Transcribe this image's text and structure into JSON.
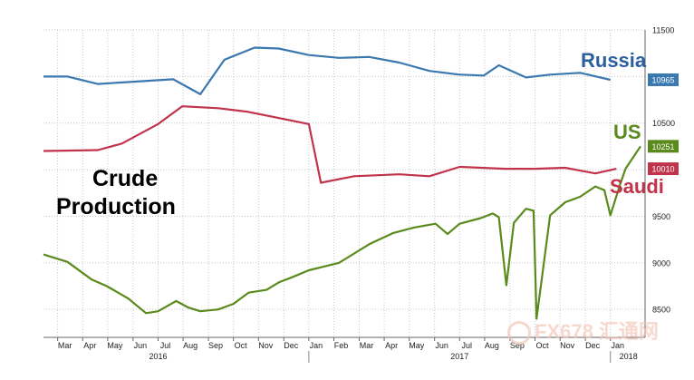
{
  "chart_data": {
    "type": "line",
    "title": "Crude\nProduction",
    "title_lines": [
      "Crude",
      "Production"
    ],
    "xlabel": "",
    "ylabel": "",
    "ylim": [
      8200,
      11500
    ],
    "y_ticks": [
      8500,
      9000,
      9500,
      10000,
      10500,
      11000,
      11500
    ],
    "grid": true,
    "y_axis_position": "right",
    "x_month_ticks": [
      {
        "label": "Mar",
        "t": 2016.167
      },
      {
        "label": "Apr",
        "t": 2016.25
      },
      {
        "label": "May",
        "t": 2016.333
      },
      {
        "label": "Jun",
        "t": 2016.417
      },
      {
        "label": "Jul",
        "t": 2016.5
      },
      {
        "label": "Aug",
        "t": 2016.583
      },
      {
        "label": "Sep",
        "t": 2016.667
      },
      {
        "label": "Oct",
        "t": 2016.75
      },
      {
        "label": "Nov",
        "t": 2016.833
      },
      {
        "label": "Dec",
        "t": 2016.917
      },
      {
        "label": "Jan",
        "t": 2017.0
      },
      {
        "label": "Feb",
        "t": 2017.083
      },
      {
        "label": "Mar",
        "t": 2017.167
      },
      {
        "label": "Apr",
        "t": 2017.25
      },
      {
        "label": "May",
        "t": 2017.333
      },
      {
        "label": "Jun",
        "t": 2017.417
      },
      {
        "label": "Jul",
        "t": 2017.5
      },
      {
        "label": "Aug",
        "t": 2017.583
      },
      {
        "label": "Sep",
        "t": 2017.667
      },
      {
        "label": "Oct",
        "t": 2017.75
      },
      {
        "label": "Nov",
        "t": 2017.833
      },
      {
        "label": "Dec",
        "t": 2017.917
      },
      {
        "label": "Jan",
        "t": 2018.0
      }
    ],
    "x_year_ticks": [
      {
        "label": "2016",
        "t": 2016.5
      },
      {
        "label": "2017",
        "t": 2017.5
      },
      {
        "label": "2018",
        "t": 2018.06
      }
    ],
    "series": [
      {
        "name": "Russia",
        "color": "#3a78b0",
        "last_value": 10965,
        "x": [
          2016.12,
          2016.2,
          2016.3,
          2016.4,
          2016.55,
          2016.64,
          2016.72,
          2016.82,
          2016.9,
          2017.0,
          2017.1,
          2017.2,
          2017.3,
          2017.4,
          2017.5,
          2017.58,
          2017.63,
          2017.72,
          2017.8,
          2017.9,
          2018.0
        ],
        "values": [
          11000,
          11000,
          10920,
          10940,
          10970,
          10810,
          11180,
          11310,
          11300,
          11230,
          11200,
          11210,
          11150,
          11060,
          11020,
          11010,
          11120,
          10990,
          11020,
          11040,
          10965
        ]
      },
      {
        "name": "Saudi",
        "color": "#c1334a",
        "last_value": 10010,
        "x": [
          2016.12,
          2016.3,
          2016.38,
          2016.5,
          2016.58,
          2016.7,
          2016.8,
          2017.0,
          2017.04,
          2017.15,
          2017.3,
          2017.4,
          2017.5,
          2017.65,
          2017.75,
          2017.85,
          2017.95,
          2018.02
        ],
        "values": [
          10200,
          10210,
          10280,
          10490,
          10680,
          10660,
          10620,
          10490,
          9860,
          9930,
          9950,
          9930,
          10030,
          10010,
          10010,
          10020,
          9960,
          10010
        ]
      },
      {
        "name": "US",
        "color": "#5a8a1c",
        "last_value": 10251,
        "x": [
          2016.12,
          2016.2,
          2016.28,
          2016.33,
          2016.4,
          2016.46,
          2016.5,
          2016.56,
          2016.6,
          2016.64,
          2016.7,
          2016.75,
          2016.8,
          2016.86,
          2016.9,
          2016.94,
          2017.0,
          2017.05,
          2017.1,
          2017.2,
          2017.28,
          2017.35,
          2017.42,
          2017.46,
          2017.5,
          2017.57,
          2017.61,
          2017.63,
          2017.655,
          2017.68,
          2017.72,
          2017.745,
          2017.75,
          2017.755,
          2017.8,
          2017.85,
          2017.9,
          2017.95,
          2017.98,
          2018.0,
          2018.03,
          2018.05,
          2018.1
        ],
        "values": [
          9090,
          9010,
          8820,
          8750,
          8620,
          8460,
          8480,
          8590,
          8520,
          8480,
          8500,
          8560,
          8680,
          8710,
          8790,
          8840,
          8920,
          8960,
          9000,
          9200,
          9320,
          9380,
          9420,
          9310,
          9420,
          9480,
          9530,
          9490,
          8760,
          9430,
          9580,
          9560,
          9020,
          8400,
          9510,
          9650,
          9710,
          9820,
          9780,
          9510,
          9820,
          10010,
          10251
        ]
      }
    ],
    "series_labels": [
      {
        "name": "Russia",
        "text": "Russia",
        "color": "#2c5f9e"
      },
      {
        "name": "US",
        "text": "US",
        "color": "#5a8a1c"
      },
      {
        "name": "Saudi",
        "text": "Saudi",
        "color": "#c1334a"
      }
    ]
  },
  "watermark": {
    "text": "FX678 汇通网",
    "color": "#f3c4b6"
  }
}
